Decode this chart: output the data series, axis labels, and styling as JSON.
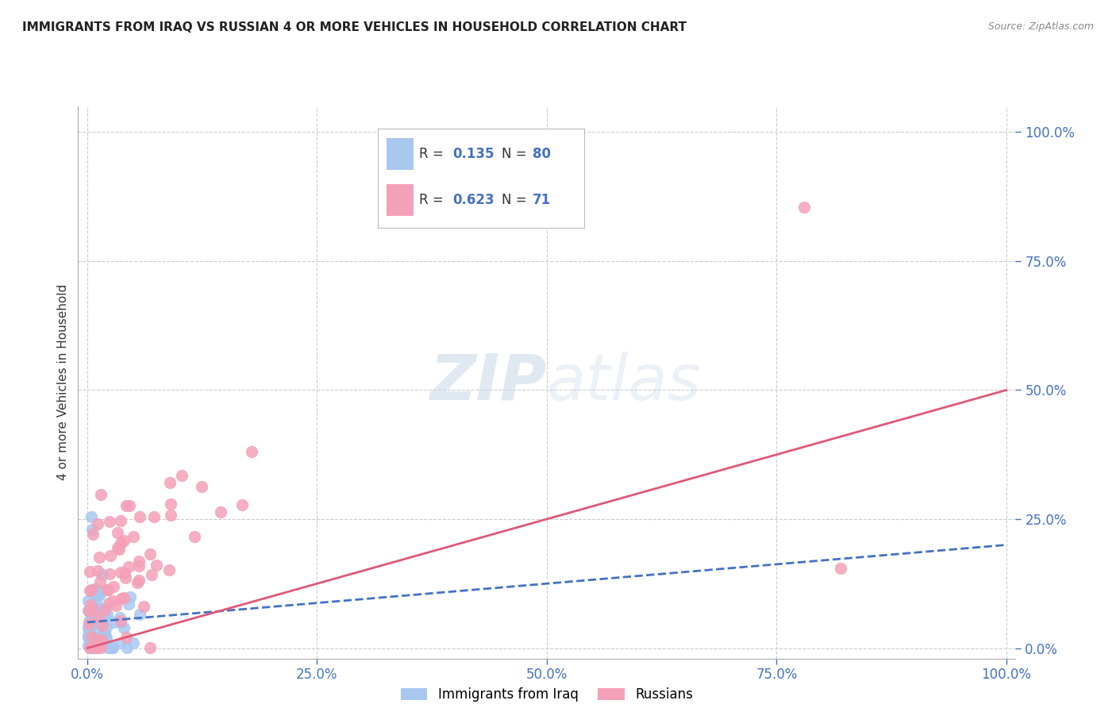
{
  "title": "IMMIGRANTS FROM IRAQ VS RUSSIAN 4 OR MORE VEHICLES IN HOUSEHOLD CORRELATION CHART",
  "source": "Source: ZipAtlas.com",
  "ylabel": "4 or more Vehicles in Household",
  "iraq_R": 0.135,
  "iraq_N": 80,
  "russian_R": 0.623,
  "russian_N": 71,
  "iraq_color": "#a8c8f0",
  "russian_color": "#f4a0b8",
  "iraq_line_color": "#4472c4",
  "russian_line_color": "#e05878",
  "legend_label_iraq": "Immigrants from Iraq",
  "legend_label_russian": "Russians",
  "axis_tick_color": "#4472c4",
  "grid_color": "#cccccc",
  "background_color": "#ffffff",
  "watermark_zip": "ZIP",
  "watermark_atlas": "atlas",
  "xmin": 0.0,
  "xmax": 1.0,
  "ymin": 0.0,
  "ymax": 1.0,
  "xticks": [
    0.0,
    0.25,
    0.5,
    0.75,
    1.0
  ],
  "yticks": [
    0.0,
    0.25,
    0.5,
    0.75,
    1.0
  ],
  "xtick_labels": [
    "0.0%",
    "25.0%",
    "50.0%",
    "75.0%",
    "100.0%"
  ],
  "ytick_labels": [
    "0.0%",
    "25.0%",
    "50.0%",
    "75.0%",
    "100.0%"
  ]
}
